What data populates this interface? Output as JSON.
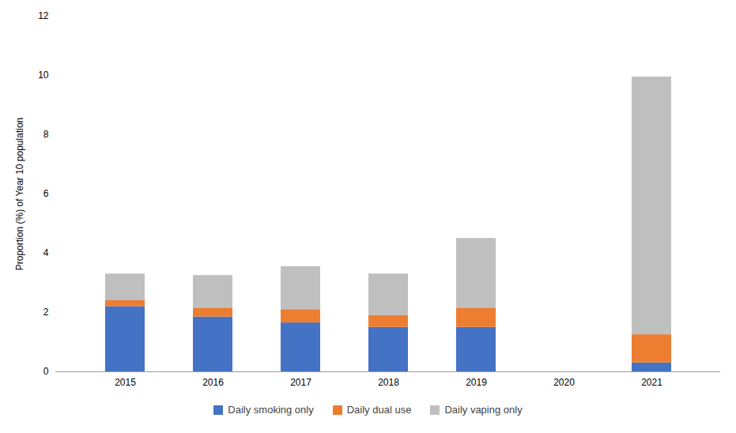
{
  "chart_data": {
    "type": "bar",
    "stacked": true,
    "categories": [
      "2015",
      "2016",
      "2017",
      "2018",
      "2019",
      "2020",
      "2021"
    ],
    "series": [
      {
        "name": "Daily smoking only",
        "color": "#4472C4",
        "values": [
          2.2,
          1.85,
          1.65,
          1.5,
          1.5,
          0.0,
          0.3
        ]
      },
      {
        "name": "Daily dual use",
        "color": "#ED7D31",
        "values": [
          0.2,
          0.3,
          0.45,
          0.4,
          0.65,
          0.0,
          0.95
        ]
      },
      {
        "name": "Daily vaping only",
        "color": "#BFBFBF",
        "values": [
          0.9,
          1.1,
          1.45,
          1.4,
          2.35,
          0.0,
          8.7
        ]
      }
    ],
    "ylabel": "Proportion (%) of Year 10 population",
    "ylim": [
      0,
      12
    ],
    "yticks": [
      0,
      2,
      4,
      6,
      8,
      10,
      12
    ],
    "grid": false,
    "legend": "bottom"
  }
}
